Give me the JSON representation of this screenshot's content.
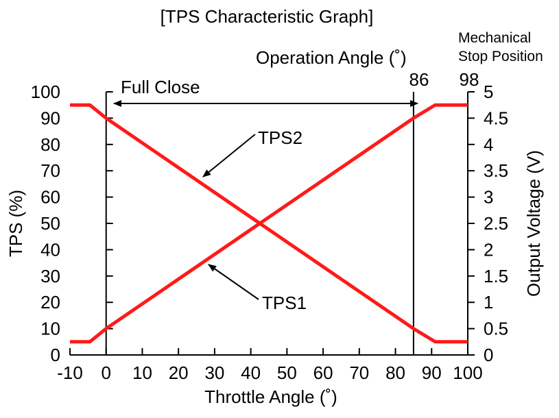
{
  "chart_data": {
    "type": "line",
    "title": "[TPS Characteristic Graph]",
    "xlabel": "Throttle Angle (˚)",
    "ylabel": "TPS (%)",
    "y2label": "Output Voltage (V)",
    "xlim": [
      -10,
      100
    ],
    "ylim": [
      0,
      100
    ],
    "y2lim": [
      0,
      5
    ],
    "x_ticks": [
      -10,
      0,
      10,
      20,
      30,
      40,
      50,
      60,
      70,
      80,
      90,
      100
    ],
    "y_ticks": [
      0,
      10,
      20,
      30,
      40,
      50,
      60,
      70,
      80,
      90,
      100
    ],
    "y2_ticks": [
      "0",
      "0.5",
      "1",
      "1.5",
      "2",
      "2.5",
      "3",
      "3.5",
      "4",
      "4.5",
      "5"
    ],
    "series": [
      {
        "name": "TPS1",
        "color": "#ff1a1a",
        "x": [
          -10,
          -4.5,
          0,
          85,
          91,
          100
        ],
        "y": [
          5,
          5,
          10,
          90,
          95,
          95
        ]
      },
      {
        "name": "TPS2",
        "color": "#ff1a1a",
        "x": [
          -10,
          -4.5,
          0,
          85,
          91,
          100
        ],
        "y": [
          95,
          95,
          90,
          10,
          5,
          5
        ]
      }
    ],
    "vertical_lines": [
      0,
      85
    ],
    "annotations": {
      "full_close": "Full Close",
      "operation_angle": "Operation Angle (˚)",
      "operation_angle_value": "86",
      "mech_stop_line1": "Mechanical",
      "mech_stop_line2": "Stop Position",
      "mech_stop_value": "98",
      "tps1_label": "TPS1",
      "tps2_label": "TPS2"
    }
  }
}
